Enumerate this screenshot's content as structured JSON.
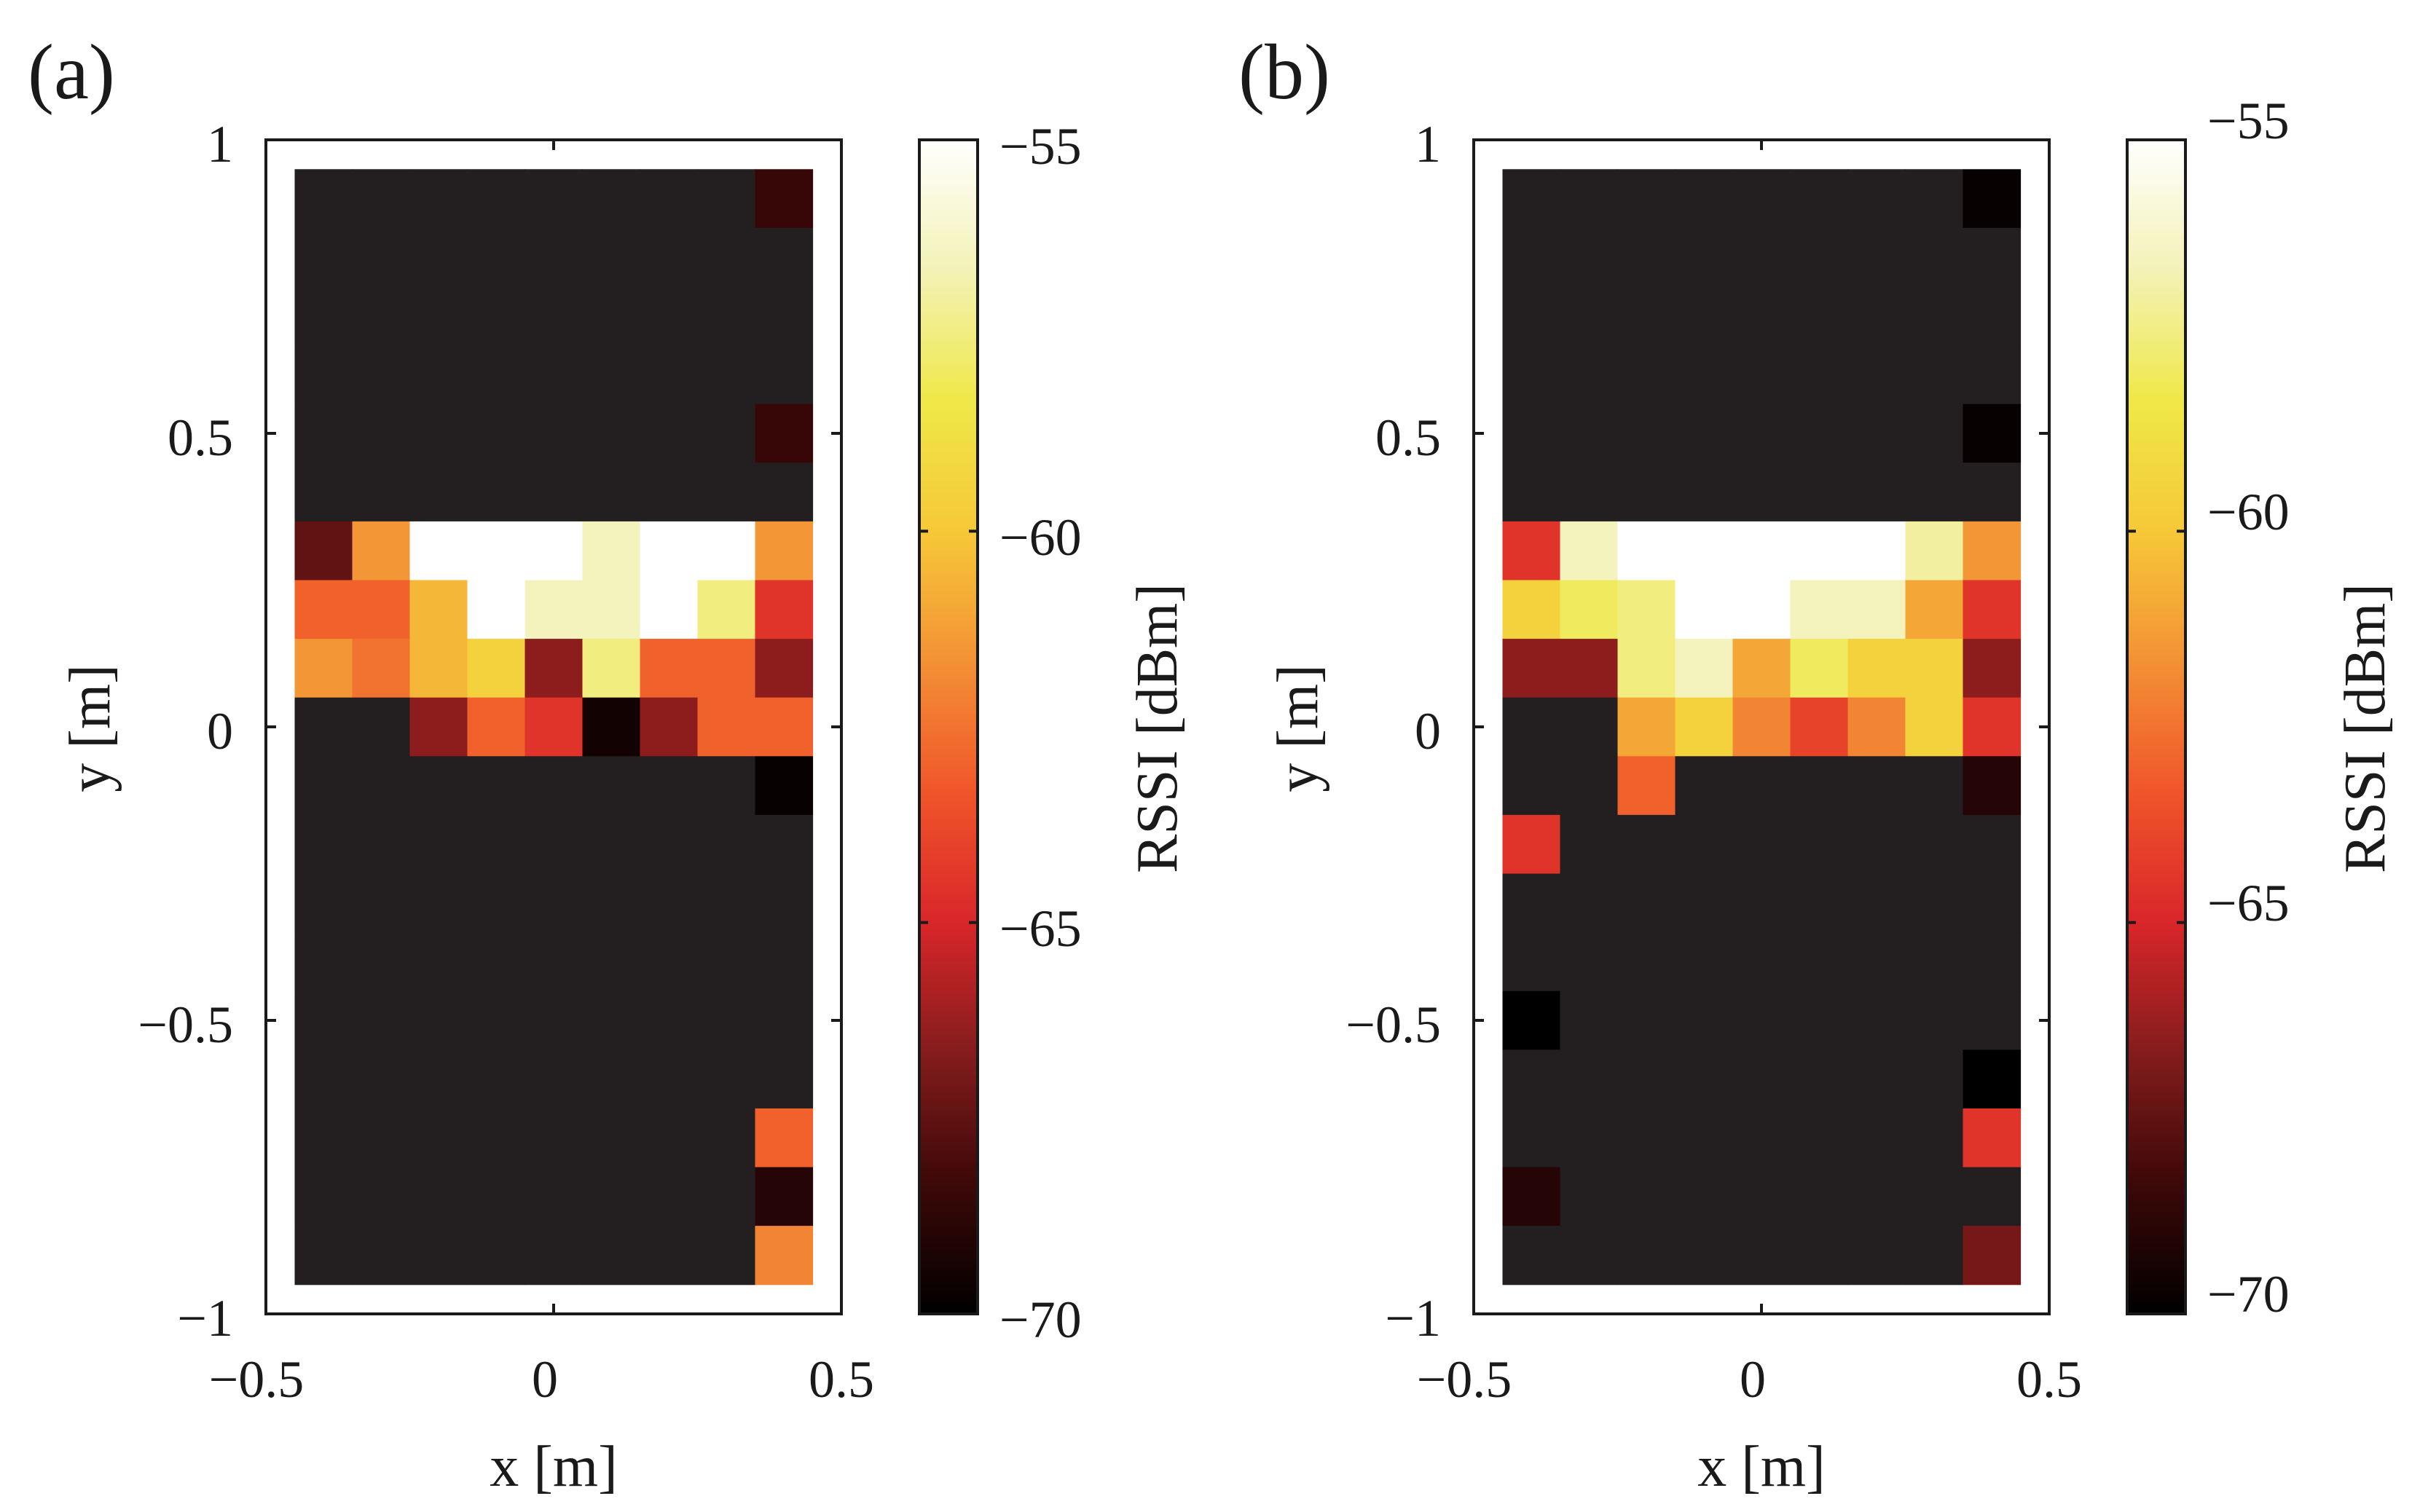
{
  "colorbar": {
    "label": "RSSI [dBm]",
    "range": [
      -70,
      -55
    ],
    "ticks": [
      -55,
      -60,
      -65,
      -70
    ],
    "tick_labels": [
      "−55",
      "−60",
      "−65",
      "−70"
    ],
    "palette": [
      "#000000",
      "#3d0808",
      "#841c1c",
      "#d9262a",
      "#f0552a",
      "#f39135",
      "#f6c838",
      "#efe848",
      "#f3f2b6",
      "#ffffff"
    ]
  },
  "chart_data": [
    {
      "type": "heatmap",
      "panel_label": "(a)",
      "xlabel": "x [m]",
      "ylabel": "y [m]",
      "xlim": [
        -0.5,
        0.5
      ],
      "ylim": [
        -1,
        1
      ],
      "xticks": [
        -0.5,
        0,
        0.5
      ],
      "yticks": [
        1,
        0.5,
        0,
        -0.5,
        -1
      ],
      "xtick_labels": [
        "−0.5",
        "0",
        "0.5"
      ],
      "ytick_labels": [
        "1",
        "0.5",
        "0",
        "−0.5",
        "−1"
      ],
      "cell_size_m": 0.1,
      "x_centers": [
        -0.4,
        -0.3,
        -0.2,
        -0.1,
        0.0,
        0.1,
        0.2,
        0.3,
        0.4
      ],
      "y_centers": [
        0.9,
        0.8,
        0.7,
        0.6,
        0.5,
        0.4,
        0.3,
        0.2,
        0.1,
        0.0,
        -0.1,
        -0.2,
        -0.3,
        -0.4,
        -0.5,
        -0.6,
        -0.7,
        -0.8,
        -0.9
      ],
      "background_value": null,
      "rssi": [
        [
          null,
          null,
          null,
          null,
          null,
          null,
          null,
          null,
          -68.5
        ],
        [
          null,
          null,
          null,
          null,
          null,
          null,
          null,
          null,
          null
        ],
        [
          null,
          null,
          null,
          null,
          null,
          null,
          null,
          null,
          null
        ],
        [
          null,
          null,
          null,
          null,
          null,
          null,
          null,
          null,
          null
        ],
        [
          null,
          null,
          null,
          null,
          null,
          null,
          null,
          null,
          -68.5
        ],
        [
          null,
          null,
          null,
          null,
          null,
          null,
          null,
          null,
          null
        ],
        [
          -67.5,
          -61.5,
          -55,
          -55,
          -55,
          -56.5,
          -55,
          -55,
          -61.5
        ],
        [
          -63,
          -63,
          -60.5,
          -55,
          -56.5,
          -56.5,
          -55,
          -57.5,
          -64.5
        ],
        [
          -61.5,
          -62.5,
          -60.5,
          -59.5,
          -66.5,
          -57.5,
          -63,
          -63,
          -66.5
        ],
        [
          null,
          null,
          -66.5,
          -63,
          -64.5,
          -69.5,
          -66.5,
          -63,
          -63
        ],
        [
          null,
          null,
          null,
          null,
          null,
          null,
          null,
          null,
          -69.8
        ],
        [
          null,
          null,
          null,
          null,
          null,
          null,
          null,
          null,
          null
        ],
        [
          null,
          null,
          null,
          null,
          null,
          null,
          null,
          null,
          null
        ],
        [
          null,
          null,
          null,
          null,
          null,
          null,
          null,
          null,
          null
        ],
        [
          null,
          null,
          null,
          null,
          null,
          null,
          null,
          null,
          null
        ],
        [
          null,
          null,
          null,
          null,
          null,
          null,
          null,
          null,
          null
        ],
        [
          null,
          null,
          null,
          null,
          null,
          null,
          null,
          null,
          -63
        ],
        [
          null,
          null,
          null,
          null,
          null,
          null,
          null,
          null,
          -69
        ],
        [
          null,
          null,
          null,
          null,
          null,
          null,
          null,
          null,
          -62
        ]
      ]
    },
    {
      "type": "heatmap",
      "panel_label": "(b)",
      "xlabel": "x [m]",
      "ylabel": "y [m]",
      "xlim": [
        -0.5,
        0.5
      ],
      "ylim": [
        -1,
        1
      ],
      "xticks": [
        -0.5,
        0,
        0.5
      ],
      "yticks": [
        1,
        0.5,
        0,
        -0.5,
        -1
      ],
      "xtick_labels": [
        "−0.5",
        "0",
        "0.5"
      ],
      "ytick_labels": [
        "1",
        "0.5",
        "0",
        "−0.5",
        "−1"
      ],
      "cell_size_m": 0.1,
      "x_centers": [
        -0.4,
        -0.3,
        -0.2,
        -0.1,
        0.0,
        0.1,
        0.2,
        0.3,
        0.4
      ],
      "y_centers": [
        0.9,
        0.8,
        0.7,
        0.6,
        0.5,
        0.4,
        0.3,
        0.2,
        0.1,
        0.0,
        -0.1,
        -0.2,
        -0.3,
        -0.4,
        -0.5,
        -0.6,
        -0.7,
        -0.8,
        -0.9
      ],
      "background_value": null,
      "rssi": [
        [
          null,
          null,
          null,
          null,
          null,
          null,
          null,
          null,
          -69.8
        ],
        [
          null,
          null,
          null,
          null,
          null,
          null,
          null,
          null,
          null
        ],
        [
          null,
          null,
          null,
          null,
          null,
          null,
          null,
          null,
          null
        ],
        [
          null,
          null,
          null,
          null,
          null,
          null,
          null,
          null,
          null
        ],
        [
          null,
          null,
          null,
          null,
          null,
          null,
          null,
          null,
          -69.8
        ],
        [
          null,
          null,
          null,
          null,
          null,
          null,
          null,
          null,
          null
        ],
        [
          -64.5,
          -56.5,
          -55,
          -55,
          -55,
          -55,
          -55,
          -57,
          -61.5
        ],
        [
          -59.5,
          -58,
          -57.5,
          -55,
          -55,
          -56.5,
          -56.5,
          -61,
          -64.5
        ],
        [
          -66.5,
          -66.5,
          -57.5,
          -56.5,
          -61,
          -58,
          -59.5,
          -59.5,
          -66.5
        ],
        [
          null,
          null,
          -61,
          -59.5,
          -62,
          -64,
          -62,
          -59.5,
          -64.5
        ],
        [
          null,
          null,
          -63,
          null,
          null,
          null,
          null,
          null,
          -69
        ],
        [
          -64.5,
          null,
          null,
          null,
          null,
          null,
          null,
          null,
          null
        ],
        [
          null,
          null,
          null,
          null,
          null,
          null,
          null,
          null,
          null
        ],
        [
          null,
          null,
          null,
          null,
          null,
          null,
          null,
          null,
          null
        ],
        [
          -70,
          null,
          null,
          null,
          null,
          null,
          null,
          null,
          null
        ],
        [
          null,
          null,
          null,
          null,
          null,
          null,
          null,
          null,
          -70
        ],
        [
          null,
          null,
          null,
          null,
          null,
          null,
          null,
          null,
          -64.5
        ],
        [
          -69,
          null,
          null,
          null,
          null,
          null,
          null,
          null,
          null
        ],
        [
          null,
          null,
          null,
          null,
          null,
          null,
          null,
          null,
          -67
        ]
      ]
    }
  ]
}
